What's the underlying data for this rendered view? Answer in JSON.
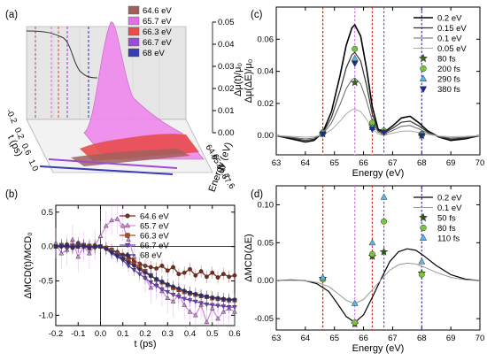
{
  "panels_text": {
    "a": "(a)",
    "b": "(b)",
    "c": "(c)",
    "d": "(d)"
  },
  "chart_data": [
    {
      "panel": "a",
      "type": "area",
      "ylabel": "Δμ(t)/μ₀",
      "xlabel": "Energy (eV)",
      "tlabel": "t (ps)",
      "z_ticks": [
        "0.00",
        "0.01",
        "0.02",
        "0.03",
        "0.04",
        "0.05"
      ],
      "energy_ticks": [
        "64.6",
        "65.7",
        "66.7",
        "67.6"
      ],
      "time_ticks": [
        "-0.2",
        "0.2",
        "0.6",
        "1.0"
      ],
      "legend": [
        {
          "label": "64.6 eV",
          "color": "#a0605a"
        },
        {
          "label": "65.7 eV",
          "color": "#e070e8"
        },
        {
          "label": "66.3 eV",
          "color": "#e84c4c"
        },
        {
          "label": "66.7 eV",
          "color": "#9b4bd6"
        },
        {
          "label": "68 eV",
          "color": "#3b3bb4"
        }
      ]
    },
    {
      "panel": "b",
      "type": "line",
      "xlabel": "t (ps)",
      "ylabel": "ΔMCD(t)/MCD₀",
      "xlim": [
        -0.2,
        0.6
      ],
      "ylim": [
        -1.15,
        0.6
      ],
      "xticks": [
        "-0.2",
        "-0.1",
        "0.0",
        "0.1",
        "0.2",
        "0.3",
        "0.4",
        "0.5",
        "0.6"
      ],
      "yticks": [
        "-1.0",
        "-0.5",
        "0.0",
        "0.5"
      ],
      "x": [
        -0.2,
        -0.175,
        -0.15,
        -0.125,
        -0.1,
        -0.075,
        -0.05,
        -0.025,
        0.0,
        0.025,
        0.05,
        0.075,
        0.1,
        0.125,
        0.15,
        0.175,
        0.2,
        0.225,
        0.25,
        0.275,
        0.3,
        0.325,
        0.35,
        0.375,
        0.4,
        0.425,
        0.45,
        0.475,
        0.5,
        0.525,
        0.55,
        0.575,
        0.6
      ],
      "series": [
        {
          "name": "64.6 eV",
          "color": "#7a2a1a",
          "marker": "circle",
          "values": [
            0.02,
            0.0,
            0.03,
            -0.02,
            0.05,
            0.01,
            -0.03,
            0.02,
            0.0,
            -0.02,
            -0.05,
            -0.08,
            -0.12,
            -0.15,
            -0.2,
            -0.25,
            -0.28,
            -0.3,
            -0.32,
            -0.28,
            -0.35,
            -0.3,
            -0.4,
            -0.38,
            -0.33,
            -0.42,
            -0.36,
            -0.44,
            -0.38,
            -0.45,
            -0.4,
            -0.44,
            -0.42
          ]
        },
        {
          "name": "65.7 eV",
          "color": "#d68ee2",
          "marker": "triangle",
          "values": [
            0.05,
            -0.1,
            -0.05,
            0.1,
            -0.15,
            0.0,
            -0.1,
            0.02,
            0.15,
            0.3,
            0.38,
            0.4,
            0.3,
            0.1,
            -0.15,
            -0.3,
            -0.45,
            -0.6,
            -0.55,
            -0.65,
            -0.75,
            -0.8,
            -0.7,
            -0.85,
            -0.95,
            -1.0,
            -0.85,
            -1.1,
            -0.9,
            -1.05,
            -0.95,
            -0.9,
            -0.95
          ]
        },
        {
          "name": "66.3 eV",
          "color": "#b34a1a",
          "marker": "square",
          "values": [
            0.0,
            0.02,
            0.0,
            0.01,
            0.0,
            0.02,
            0.01,
            0.0,
            0.0,
            -0.02,
            -0.05,
            -0.1,
            -0.15,
            -0.2,
            -0.25,
            -0.3,
            -0.36,
            -0.42,
            -0.48,
            -0.52,
            -0.56,
            -0.6,
            -0.63,
            -0.66,
            -0.68,
            -0.7,
            -0.72,
            -0.73,
            -0.75,
            -0.76,
            -0.77,
            -0.78,
            -0.78
          ]
        },
        {
          "name": "66.7 eV",
          "color": "#7a3fd0",
          "marker": "tri-down",
          "values": [
            0.0,
            0.01,
            -0.02,
            0.0,
            0.02,
            -0.01,
            0.0,
            -0.02,
            0.0,
            -0.04,
            -0.1,
            -0.15,
            -0.2,
            -0.28,
            -0.34,
            -0.4,
            -0.46,
            -0.52,
            -0.57,
            -0.62,
            -0.66,
            -0.7,
            -0.73,
            -0.76,
            -0.78,
            -0.8,
            -0.82,
            -0.84,
            -0.85,
            -0.86,
            -0.87,
            -0.88,
            -0.88
          ]
        },
        {
          "name": "68 eV",
          "color": "#2a2a7a",
          "marker": "diamond",
          "values": [
            0.0,
            0.0,
            0.01,
            -0.01,
            0.0,
            0.01,
            -0.01,
            0.0,
            0.0,
            -0.03,
            -0.08,
            -0.13,
            -0.18,
            -0.23,
            -0.28,
            -0.33,
            -0.38,
            -0.43,
            -0.47,
            -0.51,
            -0.55,
            -0.58,
            -0.61,
            -0.64,
            -0.67,
            -0.69,
            -0.71,
            -0.73,
            -0.74,
            -0.75,
            -0.76,
            -0.77,
            -0.77
          ]
        }
      ]
    },
    {
      "panel": "c",
      "type": "line",
      "xlabel": "Energy (eV)",
      "ylabel": "Δμ(ΔE)/μ₀",
      "xlim": [
        63,
        70
      ],
      "ylim": [
        -0.012,
        0.08
      ],
      "xticks": [
        "63",
        "64",
        "65",
        "66",
        "67",
        "68",
        "69",
        "70"
      ],
      "yticks": [
        "0.00",
        "0.02",
        "0.04",
        "0.06"
      ],
      "vlines": [
        {
          "x": 64.6,
          "color": "#8a3a2a"
        },
        {
          "x": 65.7,
          "color": "#d070e0"
        },
        {
          "x": 66.3,
          "color": "#d03030"
        },
        {
          "x": 66.7,
          "color": "#7a4ad0"
        },
        {
          "x": 68.0,
          "color": "#3a3aa8"
        }
      ],
      "curves": [
        {
          "name": "0.2 eV",
          "color": "#000000",
          "width": 1.6,
          "scale": 1.0
        },
        {
          "name": "0.15 eV",
          "color": "#333333",
          "width": 1.2,
          "scale": 0.75
        },
        {
          "name": "0.1 eV",
          "color": "#666666",
          "width": 1.0,
          "scale": 0.52
        },
        {
          "name": "0.05 eV",
          "color": "#aaaaaa",
          "width": 1.0,
          "scale": 0.24
        }
      ],
      "curve_x": [
        63.0,
        63.5,
        64.0,
        64.3,
        64.6,
        64.9,
        65.2,
        65.4,
        65.6,
        65.7,
        65.9,
        66.1,
        66.3,
        66.5,
        66.7,
        67.0,
        67.3,
        67.6,
        67.9,
        68.2,
        68.6,
        69.0,
        69.5,
        70.0
      ],
      "curve_y": [
        0.0,
        -0.002,
        -0.004,
        -0.003,
        0.002,
        0.015,
        0.038,
        0.056,
        0.067,
        0.069,
        0.062,
        0.042,
        0.018,
        0.004,
        0.002,
        0.006,
        0.011,
        0.012,
        0.008,
        0.003,
        -0.001,
        -0.003,
        -0.002,
        0.0
      ],
      "markers": [
        {
          "name": "80 fs",
          "color": "#3a6b1a",
          "marker": "star",
          "points": [
            [
              64.6,
              0.001
            ],
            [
              65.7,
              0.033
            ],
            [
              66.3,
              0.006
            ],
            [
              66.7,
              0.003
            ],
            [
              68.0,
              0.0
            ]
          ]
        },
        {
          "name": "200 fs",
          "color": "#7ac43a",
          "marker": "circle",
          "points": [
            [
              64.6,
              0.002
            ],
            [
              65.7,
              0.054
            ],
            [
              66.3,
              0.008
            ],
            [
              66.7,
              0.003
            ],
            [
              68.0,
              0.001
            ]
          ]
        },
        {
          "name": "290 fs",
          "color": "#5ab8e8",
          "marker": "triangle",
          "points": [
            [
              64.6,
              0.002
            ],
            [
              65.7,
              0.048
            ],
            [
              66.3,
              0.005
            ],
            [
              66.7,
              0.002
            ],
            [
              68.0,
              0.001
            ]
          ]
        },
        {
          "name": "380 fs",
          "color": "#1a2a9a",
          "marker": "tri-down",
          "points": [
            [
              64.6,
              0.001
            ],
            [
              65.7,
              0.045
            ],
            [
              66.3,
              0.004
            ],
            [
              66.7,
              0.002
            ],
            [
              68.0,
              0.0
            ]
          ]
        }
      ]
    },
    {
      "panel": "d",
      "type": "line",
      "xlabel": "Energy (eV)",
      "ylabel": "ΔMCD(ΔE)",
      "xlim": [
        63,
        70
      ],
      "ylim": [
        -0.065,
        0.125
      ],
      "xticks": [
        "63",
        "64",
        "65",
        "66",
        "67",
        "68",
        "69",
        "70"
      ],
      "yticks": [
        "-0.05",
        "0.00",
        "0.05",
        "0.10"
      ],
      "vlines": [
        {
          "x": 64.6,
          "color": "#8a3a2a"
        },
        {
          "x": 65.7,
          "color": "#d070e0"
        },
        {
          "x": 66.3,
          "color": "#d03030"
        },
        {
          "x": 66.7,
          "color": "#7a4ad0"
        },
        {
          "x": 68.0,
          "color": "#3a3aa8"
        }
      ],
      "curves": [
        {
          "name": "0.2 eV",
          "color": "#000000",
          "width": 1.2,
          "scale": 1.0
        },
        {
          "name": "0.1 eV",
          "color": "#999999",
          "width": 1.0,
          "scale": 0.55
        }
      ],
      "curve_x": [
        63.0,
        63.5,
        64.0,
        64.4,
        64.8,
        65.1,
        65.4,
        65.7,
        66.0,
        66.3,
        66.6,
        66.9,
        67.2,
        67.5,
        67.8,
        68.1,
        68.5,
        69.0,
        69.5,
        70.0
      ],
      "curve_y": [
        0.0,
        0.001,
        0.0,
        -0.004,
        -0.014,
        -0.03,
        -0.047,
        -0.055,
        -0.045,
        -0.022,
        0.002,
        0.025,
        0.038,
        0.042,
        0.04,
        0.032,
        0.02,
        0.008,
        0.002,
        0.0
      ],
      "markers": [
        {
          "name": "50 fs",
          "color": "#2a5a1a",
          "marker": "star",
          "points": [
            [
              64.6,
              0.003
            ],
            [
              65.7,
              -0.057
            ],
            [
              66.3,
              0.032
            ],
            [
              66.7,
              0.038
            ],
            [
              68.0,
              0.01
            ]
          ]
        },
        {
          "name": "80 fs",
          "color": "#7ac43a",
          "marker": "circle",
          "points": [
            [
              64.6,
              0.002
            ],
            [
              65.7,
              -0.055
            ],
            [
              66.3,
              0.035
            ],
            [
              66.7,
              0.078
            ],
            [
              68.0,
              0.008
            ]
          ]
        },
        {
          "name": "110 fs",
          "color": "#5ab8e8",
          "marker": "triangle",
          "points": [
            [
              64.6,
              0.004
            ],
            [
              65.7,
              -0.03
            ],
            [
              66.3,
              0.05
            ],
            [
              66.7,
              0.11
            ],
            [
              68.0,
              0.025
            ]
          ]
        }
      ]
    }
  ]
}
